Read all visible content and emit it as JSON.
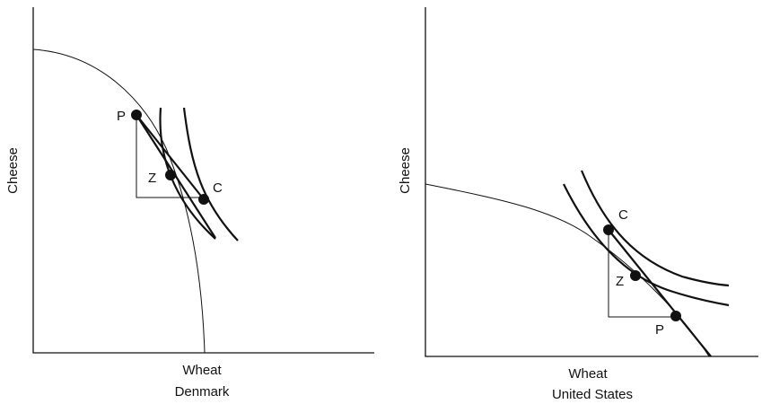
{
  "panels": [
    {
      "title": "Denmark",
      "x_label": "Wheat",
      "y_label": "Cheese",
      "points": [
        "P",
        "Z",
        "C"
      ]
    },
    {
      "title": "United States",
      "x_label": "Wheat",
      "y_label": "Cheese",
      "points": [
        "C",
        "Z",
        "P"
      ]
    }
  ]
}
